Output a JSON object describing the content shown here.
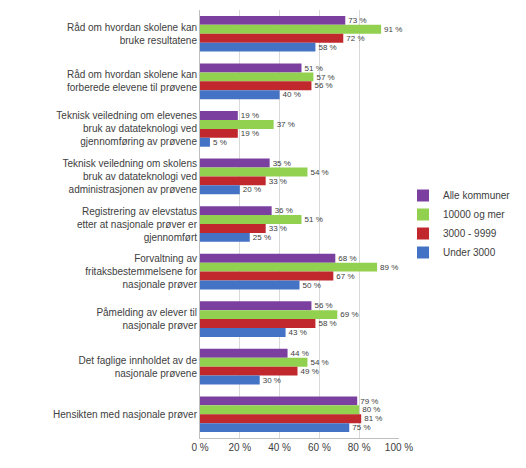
{
  "chart_data": {
    "type": "bar",
    "orientation": "horizontal",
    "categories": [
      "Råd om hvordan skolene kan bruke resultatene",
      "Råd om hvordan skolene kan forberede elevene til prøvene",
      "Teknisk veiledning om elevenes bruk av datateknologi ved gjennomføring av prøvene",
      "Teknisk veiledning om skolens bruk av datateknologi ved administrasjonen av prøvene",
      "Registrering av elevstatus etter at nasjonale prøver er gjennomført",
      "Forvaltning av fritaksbestemmelsene for nasjonale prøver",
      "Påmelding av elever til nasjonale prøver",
      "Det faglige innholdet av de nasjonale prøvene",
      "Hensikten med nasjonale prøver"
    ],
    "series": [
      {
        "name": "Alle kommuner",
        "color": "#7B3FA0",
        "values": [
          73,
          51,
          19,
          35,
          36,
          68,
          56,
          44,
          79
        ],
        "value_labels": [
          "73 %",
          "51 %",
          "19 %",
          "35 %",
          "36 %",
          "68 %",
          "56 %",
          "44 %",
          "79 %"
        ]
      },
      {
        "name": "10000 og mer",
        "color": "#92D050",
        "values": [
          91,
          57,
          37,
          54,
          51,
          89,
          69,
          54,
          80
        ],
        "value_labels": [
          "91 %",
          "57 %",
          "37 %",
          "54 %",
          "51 %",
          "89 %",
          "69 %",
          "54 %",
          "80 %"
        ]
      },
      {
        "name": "3000 - 9999",
        "color": "#C0282D",
        "values": [
          72,
          56,
          19,
          33,
          33,
          67,
          58,
          49,
          81
        ],
        "value_labels": [
          "72 %",
          "56 %",
          "19 %",
          "33 %",
          "33 %",
          "67 %",
          "58 %",
          "49 %",
          "81 %"
        ]
      },
      {
        "name": "Under 3000",
        "color": "#4472C4",
        "values": [
          58,
          40,
          5,
          20,
          25,
          50,
          43,
          30,
          75
        ],
        "value_labels": [
          "58 %",
          "40 %",
          "5 %",
          "20 %",
          "25 %",
          "50 %",
          "43 %",
          "30 %",
          "75 %"
        ]
      }
    ],
    "xlim": [
      0,
      100
    ],
    "xticks": [
      {
        "value": 0,
        "label": "0 %"
      },
      {
        "value": 20,
        "label": "20 %"
      },
      {
        "value": 40,
        "label": "40 %"
      },
      {
        "value": 60,
        "label": "60 %"
      },
      {
        "value": 80,
        "label": "80 %"
      },
      {
        "value": 100,
        "label": "100 %"
      }
    ],
    "grid": true,
    "legend": "right",
    "data_labels": true
  }
}
